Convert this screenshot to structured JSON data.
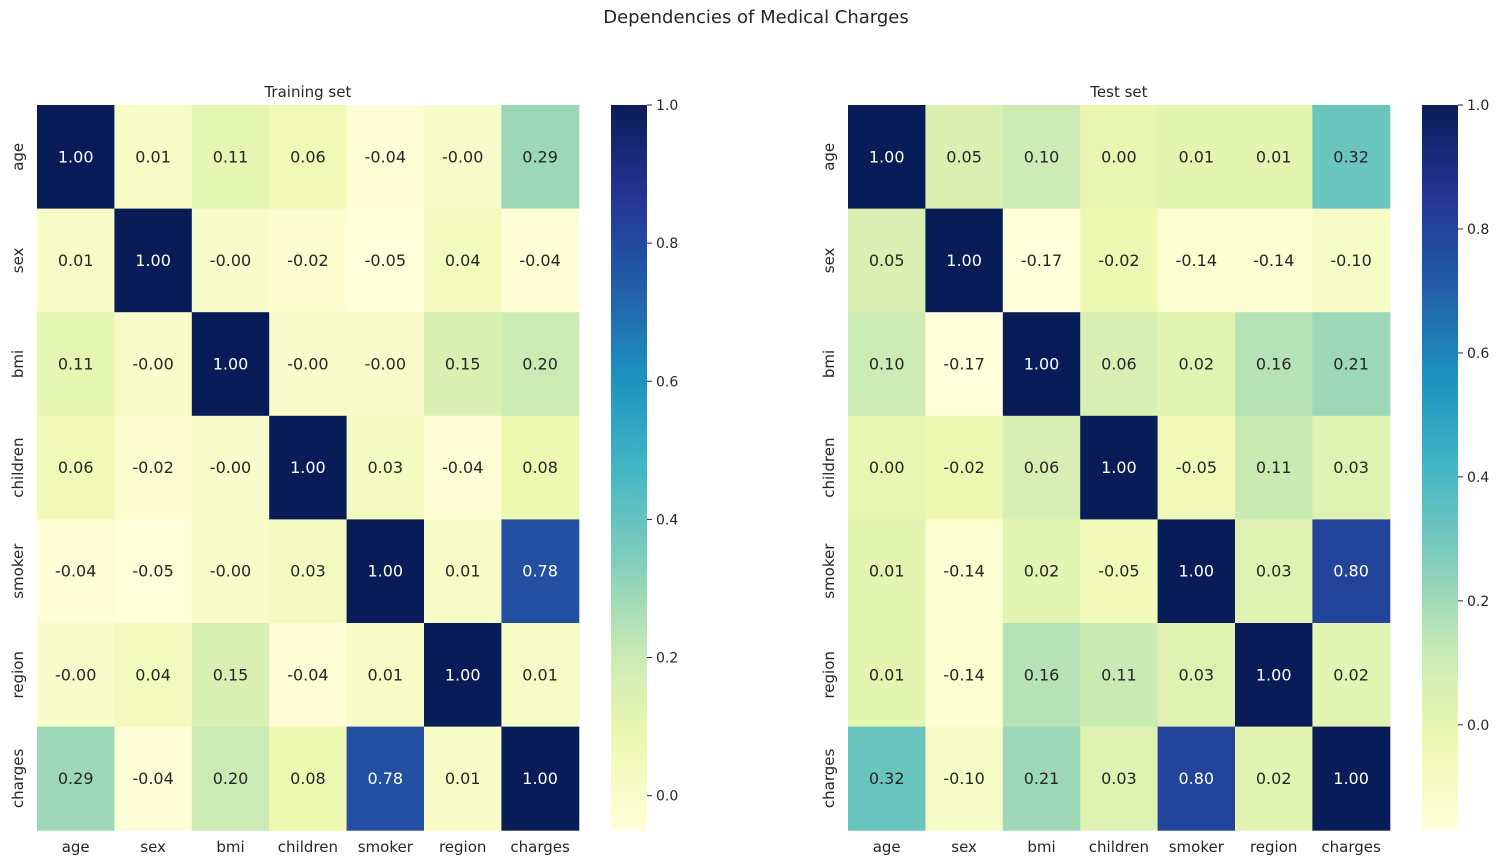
{
  "figure": {
    "title": "Dependencies of Medical Charges"
  },
  "chart_data": [
    {
      "type": "heatmap",
      "title": "Training set",
      "x_labels": [
        "age",
        "sex",
        "bmi",
        "children",
        "smoker",
        "region",
        "charges"
      ],
      "y_labels": [
        "age",
        "sex",
        "bmi",
        "children",
        "smoker",
        "region",
        "charges"
      ],
      "values": [
        [
          1.0,
          0.01,
          0.11,
          0.06,
          -0.04,
          -0.0,
          0.29
        ],
        [
          0.01,
          1.0,
          -0.0,
          -0.02,
          -0.05,
          0.04,
          -0.04
        ],
        [
          0.11,
          -0.0,
          1.0,
          -0.0,
          -0.0,
          0.15,
          0.2
        ],
        [
          0.06,
          -0.02,
          -0.0,
          1.0,
          0.03,
          -0.04,
          0.08
        ],
        [
          -0.04,
          -0.05,
          -0.0,
          0.03,
          1.0,
          0.01,
          0.78
        ],
        [
          -0.0,
          0.04,
          0.15,
          -0.04,
          0.01,
          1.0,
          0.01
        ],
        [
          0.29,
          -0.04,
          0.2,
          0.08,
          0.78,
          0.01,
          1.0
        ]
      ],
      "annotation_format": "0.00",
      "colormap": "YlGnBu",
      "colorbar": {
        "vmin": -0.05,
        "vmax": 1.0,
        "ticks": [
          0.0,
          0.2,
          0.4,
          0.6,
          0.8,
          1.0
        ],
        "tick_labels": [
          "0.0",
          "0.2",
          "0.4",
          "0.6",
          "0.8",
          "1.0"
        ]
      }
    },
    {
      "type": "heatmap",
      "title": "Test set",
      "x_labels": [
        "age",
        "sex",
        "bmi",
        "children",
        "smoker",
        "region",
        "charges"
      ],
      "y_labels": [
        "age",
        "sex",
        "bmi",
        "children",
        "smoker",
        "region",
        "charges"
      ],
      "values": [
        [
          1.0,
          0.05,
          0.1,
          0.0,
          0.01,
          0.01,
          0.32
        ],
        [
          0.05,
          1.0,
          -0.17,
          -0.02,
          -0.14,
          -0.14,
          -0.1
        ],
        [
          0.1,
          -0.17,
          1.0,
          0.06,
          0.02,
          0.16,
          0.21
        ],
        [
          0.0,
          -0.02,
          0.06,
          1.0,
          -0.05,
          0.11,
          0.03
        ],
        [
          0.01,
          -0.14,
          0.02,
          -0.05,
          1.0,
          0.03,
          0.8
        ],
        [
          0.01,
          -0.14,
          0.16,
          0.11,
          0.03,
          1.0,
          0.02
        ],
        [
          0.32,
          -0.1,
          0.21,
          0.03,
          0.8,
          0.02,
          1.0
        ]
      ],
      "annotation_format": "0.00",
      "colormap": "YlGnBu",
      "colorbar": {
        "vmin": -0.17,
        "vmax": 1.0,
        "ticks": [
          0.0,
          0.2,
          0.4,
          0.6,
          0.8,
          1.0
        ],
        "tick_labels": [
          "0.0",
          "0.2",
          "0.4",
          "0.6",
          "0.8",
          "1.0"
        ]
      }
    }
  ]
}
